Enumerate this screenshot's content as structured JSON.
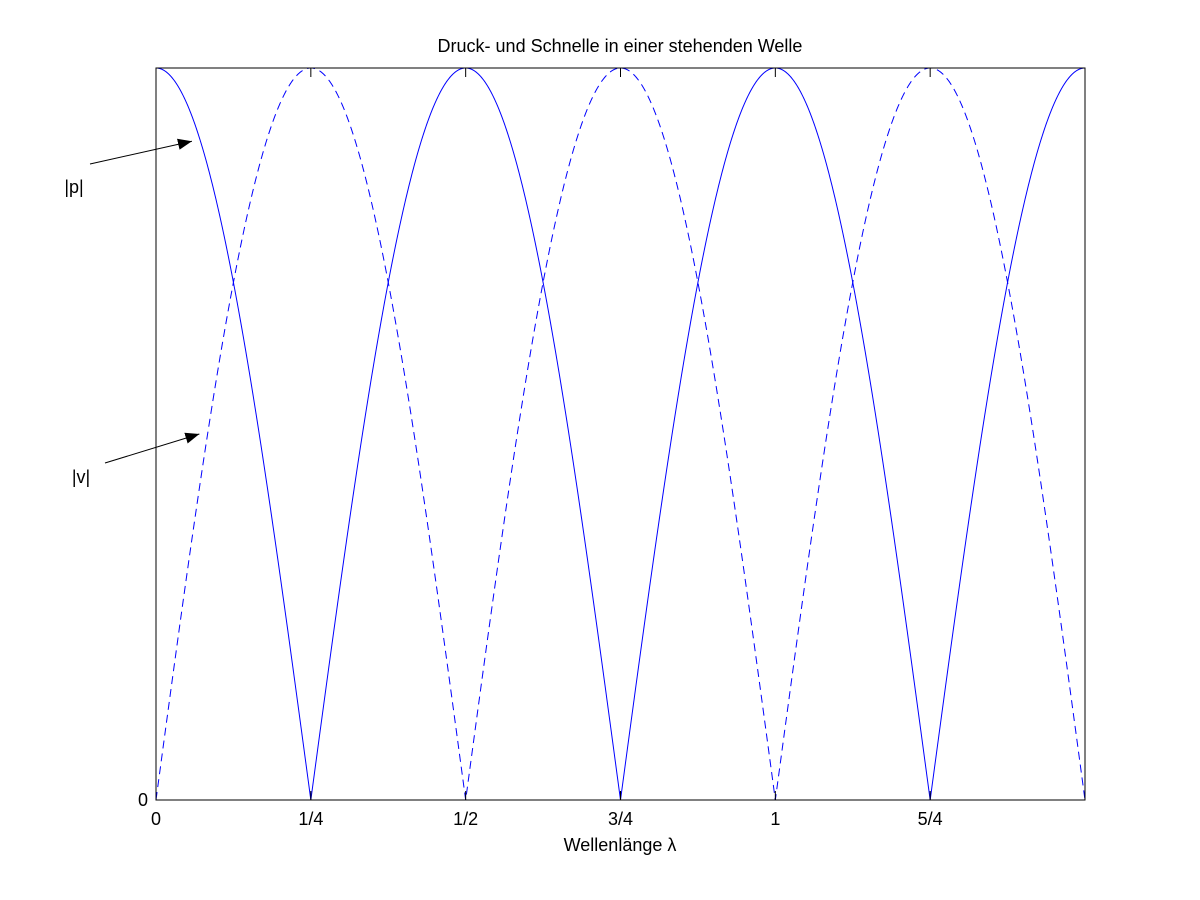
{
  "chart_data": {
    "type": "line",
    "title": "Druck- und Schnelle in einer stehenden Welle",
    "xlabel": "Wellenlänge λ",
    "ylabel": "",
    "xlim": [
      0,
      1.5
    ],
    "ylim": [
      0,
      1
    ],
    "grid": false,
    "x_ticks": [
      {
        "value": 0,
        "label": "0"
      },
      {
        "value": 0.25,
        "label": "1/4"
      },
      {
        "value": 0.5,
        "label": "1/2"
      },
      {
        "value": 0.75,
        "label": "3/4"
      },
      {
        "value": 1,
        "label": "1"
      },
      {
        "value": 1.25,
        "label": "5/4"
      }
    ],
    "y_ticks": [
      {
        "value": 0,
        "label": "0"
      }
    ],
    "series": [
      {
        "name": "|p|",
        "function": "abs(cos(2*pi*x))",
        "line_style": "solid",
        "color": "#0000ff"
      },
      {
        "name": "|v|",
        "function": "abs(sin(2*pi*x))",
        "line_style": "dashed",
        "color": "#0000ff"
      }
    ],
    "annotations": [
      {
        "text": "|p|",
        "points_to_series": "|p|",
        "arrow_target_x": 0.058,
        "arrow_target_y": 0.9
      },
      {
        "text": "|v|",
        "points_to_series": "|v|",
        "arrow_target_x": 0.07,
        "arrow_target_y": 0.5
      }
    ]
  }
}
